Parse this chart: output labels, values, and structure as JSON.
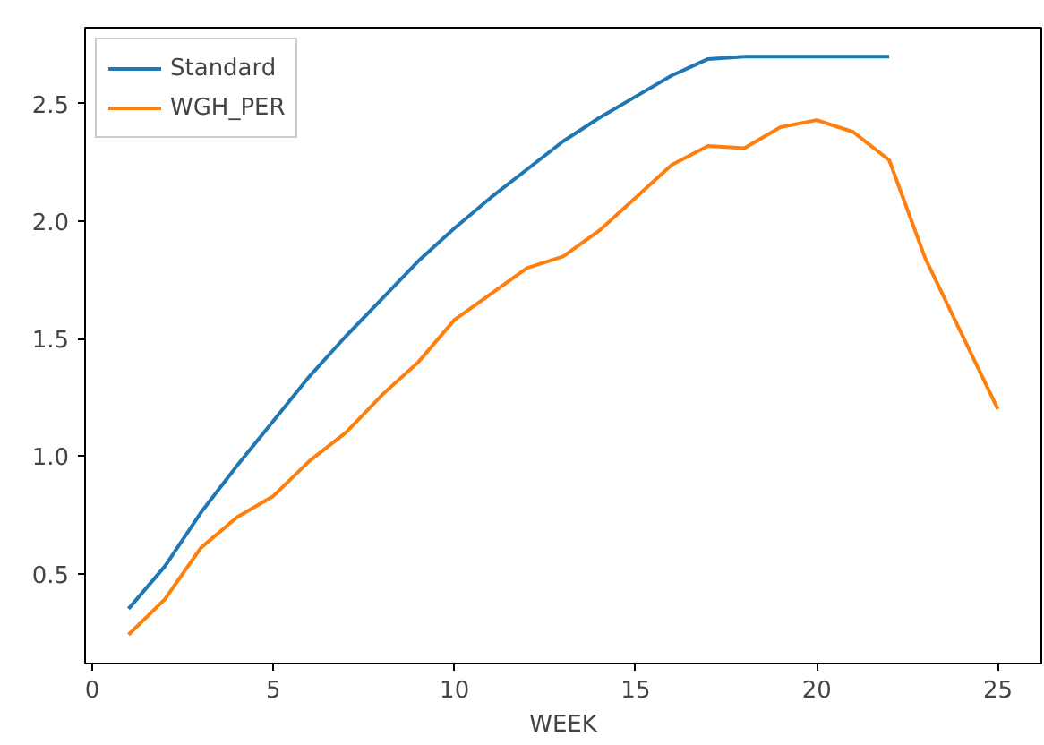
{
  "chart_data": {
    "type": "line",
    "xlabel": "WEEK",
    "x": [
      1,
      2,
      3,
      4,
      5,
      6,
      7,
      8,
      9,
      10,
      11,
      12,
      13,
      14,
      15,
      16,
      17,
      18,
      19,
      20,
      21,
      22,
      23,
      24,
      25
    ],
    "series": [
      {
        "name": "Standard",
        "color": "#1f77b4",
        "values": [
          0.35,
          0.53,
          0.76,
          0.96,
          1.15,
          1.34,
          1.51,
          1.67,
          1.83,
          1.97,
          2.1,
          2.22,
          2.34,
          2.44,
          2.53,
          2.62,
          2.69,
          2.7,
          2.7,
          2.7,
          2.7,
          2.7,
          null,
          null,
          null
        ]
      },
      {
        "name": "WGH_PER",
        "color": "#ff7f0e",
        "values": [
          0.24,
          0.39,
          0.61,
          0.74,
          0.83,
          0.98,
          1.1,
          1.26,
          1.4,
          1.58,
          1.69,
          1.8,
          1.85,
          1.96,
          2.1,
          2.24,
          2.32,
          2.31,
          2.4,
          2.43,
          2.38,
          2.26,
          1.84,
          1.52,
          1.2
        ]
      }
    ],
    "xlim": [
      -0.2,
      26.2
    ],
    "ylim": [
      0.117,
      2.823
    ],
    "xticks": [
      0,
      5,
      10,
      15,
      20,
      25
    ],
    "yticks": [
      0.5,
      {
        "value": 1,
        "label": "1.0"
      },
      1.5,
      {
        "value": 2,
        "label": "2.0"
      },
      2.5
    ],
    "legend": "top left",
    "grid": false,
    "line_style": "solid"
  }
}
